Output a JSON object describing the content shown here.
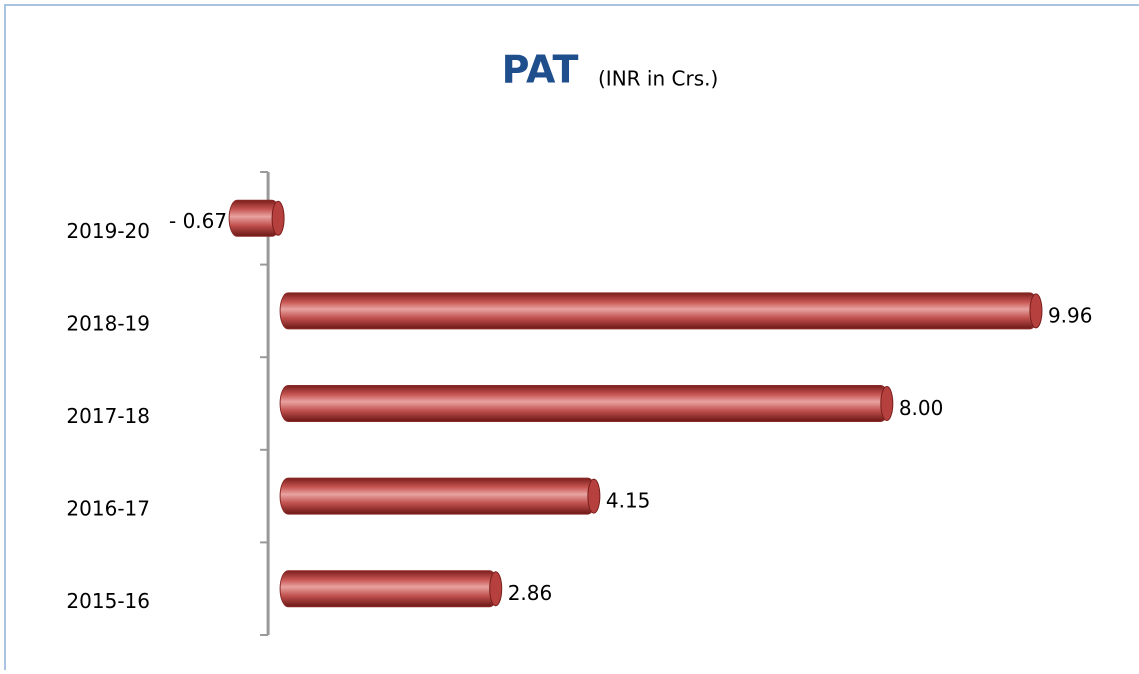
{
  "chart_data": {
    "type": "bar",
    "orientation": "horizontal",
    "title": "PAT",
    "subtitle": "(INR in Crs.)",
    "categories": [
      "2019-20",
      "2018-19",
      "2017-18",
      "2016-17",
      "2015-16"
    ],
    "values": [
      -0.67,
      9.96,
      8.0,
      4.15,
      2.86
    ],
    "value_labels": [
      "- 0.67",
      "9.96",
      "8.00",
      "4.15",
      "2.86"
    ],
    "color": "#c0504d",
    "xlim": [
      -1,
      10
    ]
  }
}
